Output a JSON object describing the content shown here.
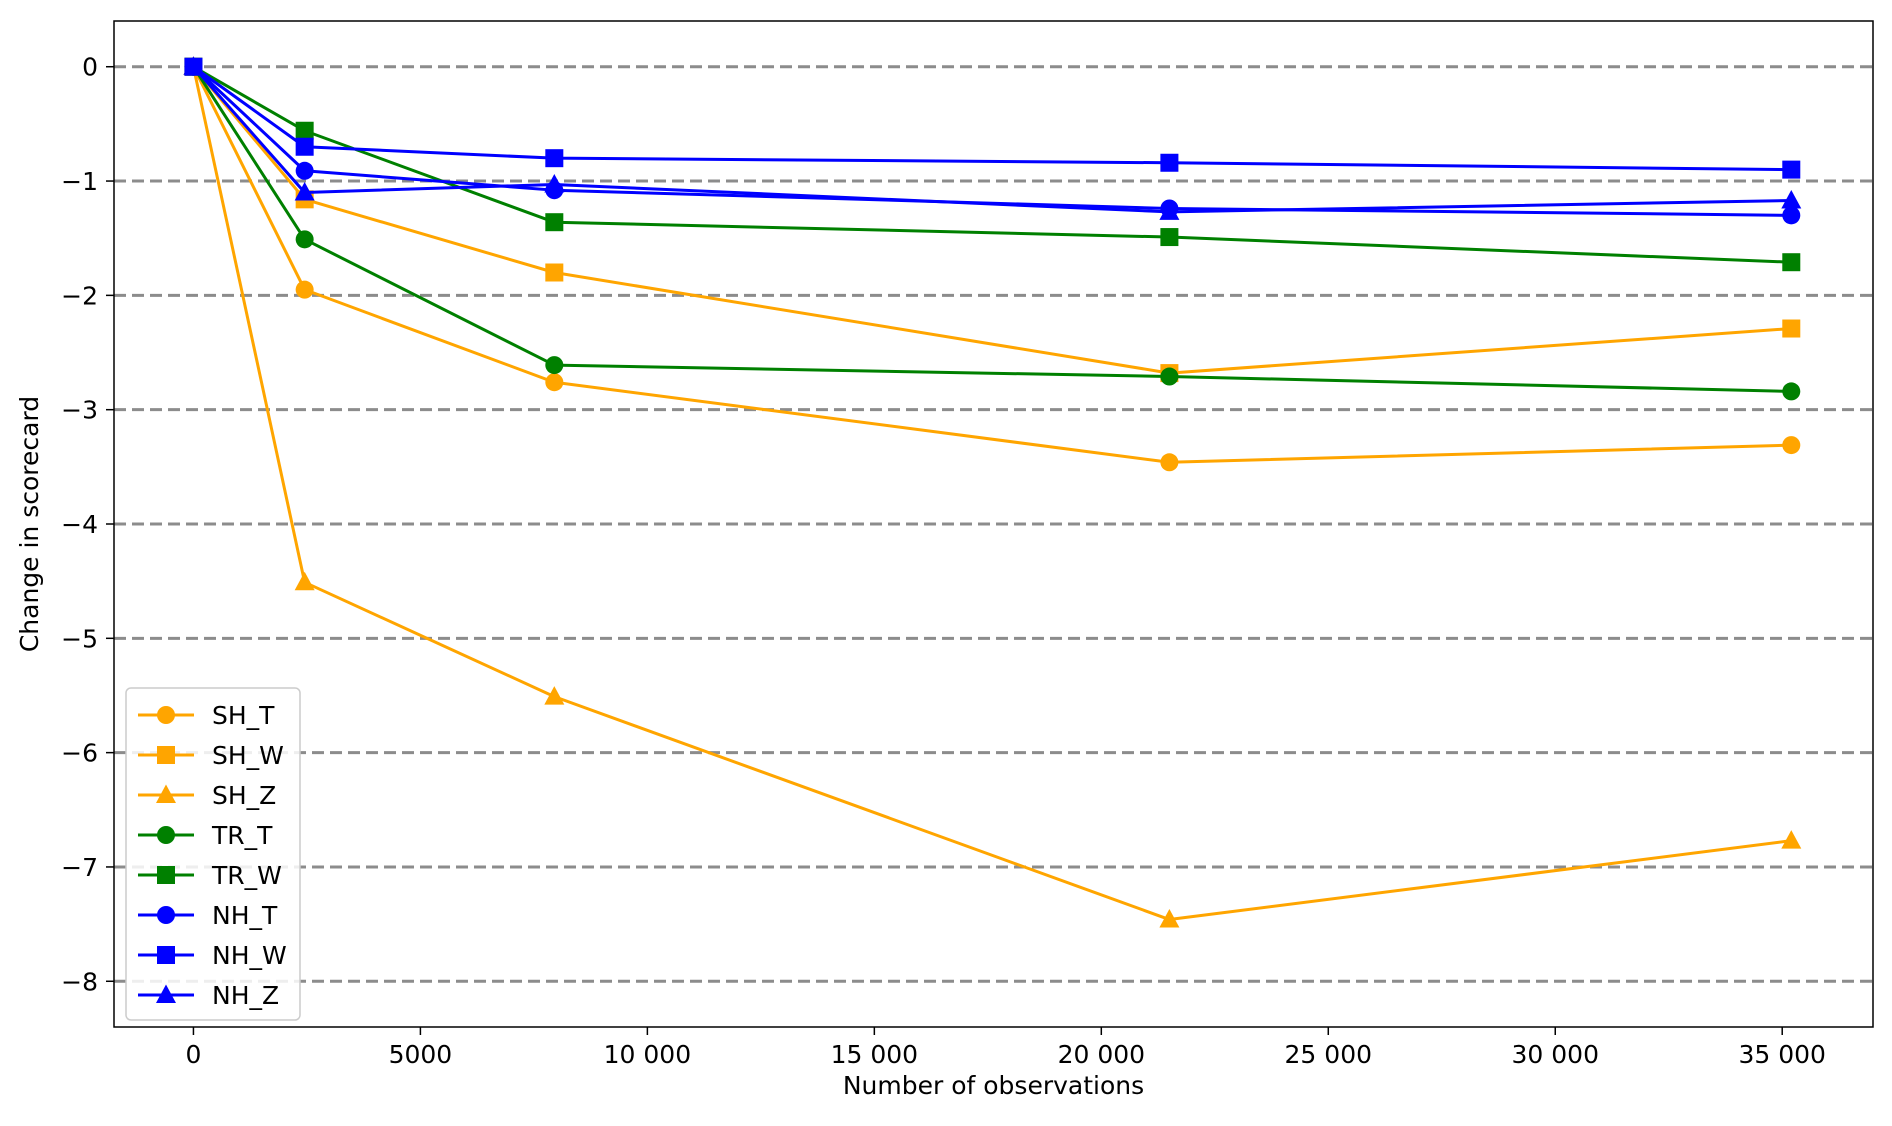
{
  "chart_data": {
    "type": "line",
    "title": "",
    "xlabel": "Number of observations",
    "ylabel": "Change in scorecard",
    "xlim": [
      -1750,
      37000
    ],
    "ylim": [
      -8.4,
      0.4
    ],
    "x_ticks": [
      0,
      5000,
      10000,
      15000,
      20000,
      25000,
      30000,
      35000
    ],
    "x_tick_labels": [
      "0",
      "5000",
      "10 000",
      "15 000",
      "20 000",
      "25 000",
      "30 000",
      "35 000"
    ],
    "y_ticks": [
      0,
      -1,
      -2,
      -3,
      -4,
      -5,
      -6,
      -7,
      -8
    ],
    "y_tick_labels": [
      "0",
      "−1",
      "−2",
      "−3",
      "−4",
      "−5",
      "−6",
      "−7",
      "−8"
    ],
    "grid": "horizontal dashed gray lines at each y tick",
    "legend_position": "lower-left",
    "x": [
      0,
      2450,
      7950,
      21500,
      35200
    ],
    "series": [
      {
        "name": "SH_T",
        "color": "#FFA500",
        "marker": "circle",
        "values": [
          0,
          -1.95,
          -2.76,
          -3.46,
          -3.31
        ]
      },
      {
        "name": "SH_W",
        "color": "#FFA500",
        "marker": "square",
        "values": [
          0,
          -1.16,
          -1.8,
          -2.68,
          -2.29
        ]
      },
      {
        "name": "SH_Z",
        "color": "#FFA500",
        "marker": "triangle",
        "values": [
          0,
          -4.51,
          -5.51,
          -7.46,
          -6.77
        ]
      },
      {
        "name": "TR_T",
        "color": "#008000",
        "marker": "circle",
        "values": [
          0,
          -1.51,
          -2.61,
          -2.71,
          -2.84
        ]
      },
      {
        "name": "TR_W",
        "color": "#008000",
        "marker": "square",
        "values": [
          0,
          -0.56,
          -1.36,
          -1.49,
          -1.71
        ]
      },
      {
        "name": "NH_T",
        "color": "#0000FF",
        "marker": "circle",
        "values": [
          0,
          -0.91,
          -1.08,
          -1.24,
          -1.3
        ]
      },
      {
        "name": "NH_W",
        "color": "#0000FF",
        "marker": "square",
        "values": [
          0,
          -0.7,
          -0.8,
          -0.84,
          -0.9
        ]
      },
      {
        "name": "NH_Z",
        "color": "#0000FF",
        "marker": "triangle",
        "values": [
          0,
          -1.1,
          -1.03,
          -1.27,
          -1.17
        ]
      }
    ]
  }
}
